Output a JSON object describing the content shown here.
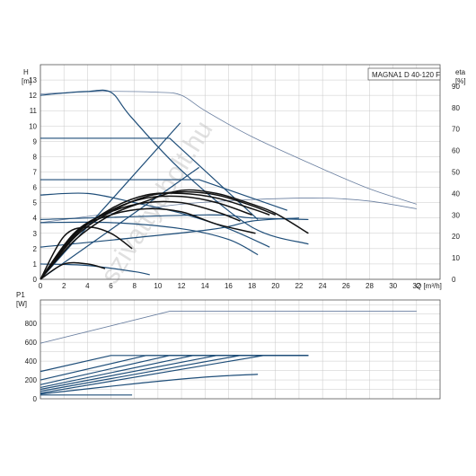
{
  "chart_data": [
    {
      "type": "line",
      "title": "MAGNA1 D 40-120 F",
      "ylabel_name": "H",
      "ylabel_unit": "[m]",
      "y2label_name": "eta",
      "y2label_unit": "[%]",
      "xlabel": "Q [m³/h]",
      "xlim": [
        0,
        34
      ],
      "ylim": [
        0,
        14
      ],
      "y2lim": [
        0,
        100
      ],
      "xticks": [
        0,
        2,
        4,
        6,
        8,
        10,
        12,
        14,
        16,
        18,
        20,
        22,
        24,
        26,
        28,
        30,
        32
      ],
      "yticks": [
        0,
        1,
        2,
        3,
        4,
        5,
        6,
        7,
        8,
        9,
        10,
        11,
        12,
        13
      ],
      "y2ticks": [
        0,
        10,
        20,
        30,
        40,
        50,
        60,
        70,
        80,
        90
      ],
      "grid": true,
      "watermark": "szivattyubolt.hu",
      "colors": {
        "curve": "#1f4e79",
        "light": "#6a7fa0",
        "eta": "#111111",
        "grid": "#c8c8c8"
      },
      "series": [
        {
          "style": "light",
          "points": [
            [
              0,
              12.1
            ],
            [
              5,
              12.25
            ],
            [
              10,
              12.2
            ],
            [
              12,
              12.0
            ],
            [
              14,
              11.0
            ],
            [
              18,
              9.3
            ],
            [
              24,
              7.2
            ],
            [
              28,
              5.9
            ],
            [
              32,
              4.9
            ]
          ]
        },
        {
          "style": "light",
          "points": [
            [
              0,
              3.7
            ],
            [
              6,
              4.3
            ],
            [
              12,
              4.9
            ],
            [
              18,
              5.2
            ],
            [
              24,
              5.3
            ],
            [
              28,
              5.1
            ],
            [
              32,
              4.6
            ]
          ]
        },
        {
          "style": "curve",
          "points": [
            [
              0,
              12
            ],
            [
              2,
              12.15
            ],
            [
              4,
              12.25
            ],
            [
              6,
              12.2
            ],
            [
              7.7,
              10.6
            ],
            [
              12,
              7.1
            ],
            [
              18,
              3.4
            ],
            [
              22.8,
              2.3
            ]
          ]
        },
        {
          "style": "curve",
          "points": [
            [
              0,
              9.2
            ],
            [
              11,
              9.2
            ],
            [
              18.5,
              3.9
            ]
          ]
        },
        {
          "style": "curve",
          "points": [
            [
              0,
              6.5
            ],
            [
              13.5,
              6.5
            ],
            [
              21,
              4.5
            ]
          ]
        },
        {
          "style": "curve",
          "points": [
            [
              0,
              5.5
            ],
            [
              4,
              5.6
            ],
            [
              8,
              5.0
            ],
            [
              12,
              4.3
            ],
            [
              16,
              3.3
            ],
            [
              19.5,
              2.1
            ]
          ]
        },
        {
          "style": "curve",
          "points": [
            [
              0,
              3.7
            ],
            [
              6,
              3.7
            ],
            [
              12,
              3.3
            ],
            [
              16,
              2.6
            ],
            [
              18.5,
              1.6
            ]
          ]
        },
        {
          "style": "curve",
          "points": [
            [
              0,
              1.0
            ],
            [
              4,
              0.9
            ],
            [
              8,
              0.5
            ],
            [
              9.3,
              0.3
            ]
          ]
        },
        {
          "style": "curve",
          "points": [
            [
              0,
              0
            ],
            [
              11.9,
              10.2
            ]
          ]
        },
        {
          "style": "curve",
          "points": [
            [
              0,
              0
            ],
            [
              13.5,
              7.3
            ]
          ]
        },
        {
          "style": "curve",
          "points": [
            [
              0,
              3.9
            ],
            [
              14,
              4.2
            ],
            [
              18,
              4.0
            ],
            [
              22.8,
              3.9
            ]
          ]
        },
        {
          "style": "curve",
          "points": [
            [
              0,
              2.1
            ],
            [
              14,
              3.2
            ],
            [
              18,
              3.8
            ],
            [
              22,
              4.0
            ]
          ]
        },
        {
          "style": "eta",
          "points": [
            [
              0,
              0
            ],
            [
              3,
              2.6
            ],
            [
              6,
              4.2
            ],
            [
              9,
              5.1
            ],
            [
              12,
              5.8
            ],
            [
              15,
              5.6
            ],
            [
              18,
              4.9
            ],
            [
              20,
              4.3
            ],
            [
              22.8,
              3.0
            ]
          ]
        },
        {
          "style": "eta",
          "points": [
            [
              0,
              0
            ],
            [
              3,
              2.8
            ],
            [
              6,
              4.4
            ],
            [
              9,
              5.4
            ],
            [
              12,
              5.7
            ],
            [
              15,
              5.5
            ],
            [
              18,
              4.8
            ],
            [
              20,
              4.2
            ]
          ]
        },
        {
          "style": "eta",
          "points": [
            [
              0,
              0
            ],
            [
              3,
              2.9
            ],
            [
              6,
              4.6
            ],
            [
              9,
              5.5
            ],
            [
              12,
              5.6
            ],
            [
              15,
              5.3
            ],
            [
              18,
              4.6
            ],
            [
              19.5,
              4.2
            ]
          ]
        },
        {
          "style": "eta",
          "points": [
            [
              0,
              0
            ],
            [
              3,
              3.0
            ],
            [
              6,
              4.5
            ],
            [
              9,
              5.3
            ],
            [
              12,
              5.4
            ],
            [
              15,
              5.0
            ],
            [
              18,
              4.2
            ]
          ]
        },
        {
          "style": "eta",
          "points": [
            [
              0,
              0
            ],
            [
              3,
              3.1
            ],
            [
              6,
              4.4
            ],
            [
              9,
              5.0
            ],
            [
              12,
              5.0
            ],
            [
              15,
              4.4
            ],
            [
              17,
              3.8
            ]
          ]
        },
        {
          "style": "eta",
          "points": [
            [
              0,
              0
            ],
            [
              3,
              3.1
            ],
            [
              6,
              4.2
            ],
            [
              9,
              4.6
            ],
            [
              12,
              4.4
            ],
            [
              15,
              3.6
            ],
            [
              18.3,
              3.0
            ]
          ]
        },
        {
          "style": "eta",
          "points": [
            [
              0,
              0
            ],
            [
              2,
              2.8
            ],
            [
              4,
              3.4
            ],
            [
              6,
              3.0
            ],
            [
              7.8,
              2.0
            ]
          ]
        },
        {
          "style": "eta",
          "points": [
            [
              0,
              0
            ],
            [
              2,
              1.0
            ],
            [
              4,
              1.0
            ],
            [
              5.5,
              0.7
            ]
          ]
        }
      ]
    },
    {
      "type": "line",
      "ylabel_name": "P1",
      "ylabel_unit": "[W]",
      "xlim": [
        0,
        34
      ],
      "ylim": [
        0,
        1050
      ],
      "yticks": [
        0,
        200,
        400,
        600,
        800
      ],
      "grid": true,
      "series": [
        {
          "style": "light",
          "points": [
            [
              0,
              590
            ],
            [
              11,
              930
            ],
            [
              32,
              930
            ]
          ]
        },
        {
          "style": "curve",
          "points": [
            [
              0,
              290
            ],
            [
              6,
              460
            ],
            [
              22.8,
              460
            ]
          ]
        },
        {
          "style": "curve",
          "points": [
            [
              0,
              200
            ],
            [
              9,
              460
            ],
            [
              22.8,
              460
            ]
          ]
        },
        {
          "style": "curve",
          "points": [
            [
              0,
              150
            ],
            [
              11,
              460
            ],
            [
              22.8,
              460
            ]
          ]
        },
        {
          "style": "curve",
          "points": [
            [
              0,
              120
            ],
            [
              13,
              460
            ],
            [
              22.8,
              460
            ]
          ]
        },
        {
          "style": "curve",
          "points": [
            [
              0,
              100
            ],
            [
              15,
              460
            ],
            [
              22.8,
              460
            ]
          ]
        },
        {
          "style": "curve",
          "points": [
            [
              0,
              80
            ],
            [
              17,
              460
            ],
            [
              22.8,
              460
            ]
          ]
        },
        {
          "style": "curve",
          "points": [
            [
              0,
              60
            ],
            [
              19,
              460
            ],
            [
              22.8,
              460
            ]
          ]
        },
        {
          "style": "curve",
          "points": [
            [
              0,
              50
            ],
            [
              8,
              160
            ],
            [
              14,
              230
            ],
            [
              18.5,
              260
            ]
          ]
        },
        {
          "style": "curve",
          "points": [
            [
              0,
              40
            ],
            [
              7.8,
              40
            ]
          ]
        }
      ]
    }
  ]
}
